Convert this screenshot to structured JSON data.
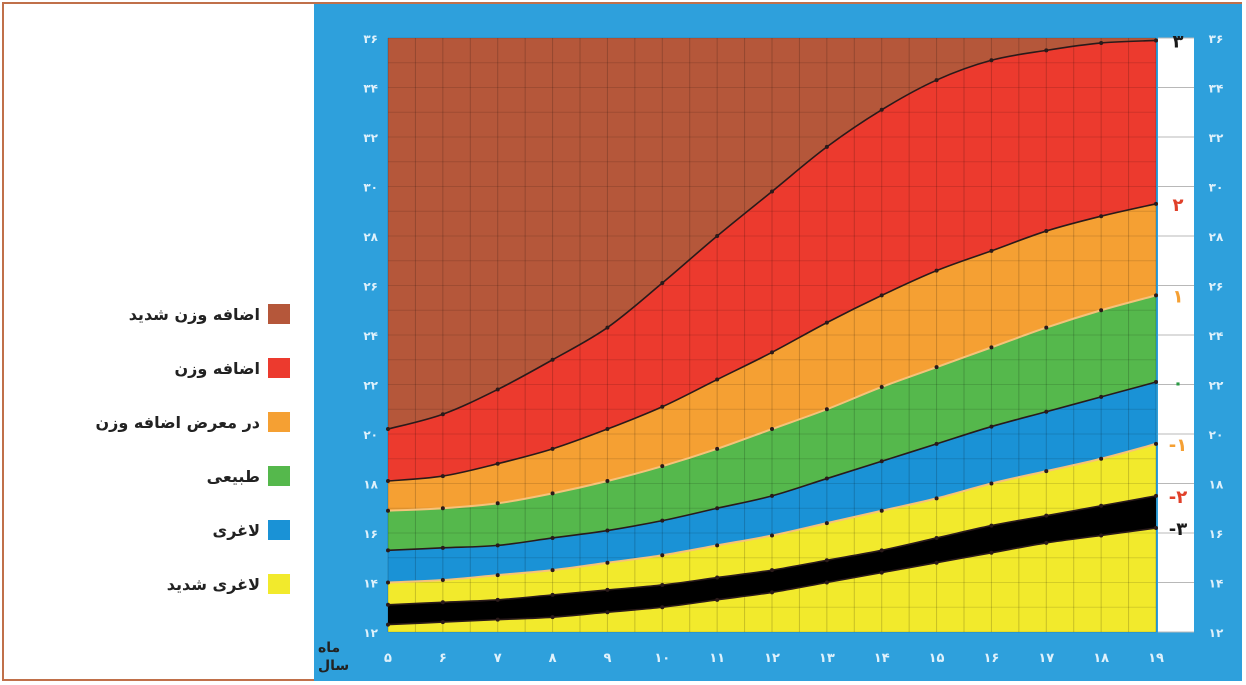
{
  "legend": [
    {
      "label": "اضافه وزن شدید",
      "color": "#b5573a"
    },
    {
      "label": "اضافه وزن",
      "color": "#ec3a2e"
    },
    {
      "label": "در معرض اضافه وزن",
      "color": "#f5a033"
    },
    {
      "label": "طبیعی",
      "color": "#55b84c"
    },
    {
      "label": "لاغری",
      "color": "#1a92d6"
    },
    {
      "label": "لاغری شدید",
      "color": "#f2ea2c"
    }
  ],
  "units": {
    "month": "ماه",
    "year": "سال"
  },
  "chart_data": {
    "type": "area",
    "x": [
      5,
      6,
      7,
      8,
      9,
      10,
      11,
      12,
      13,
      14,
      15,
      16,
      17,
      18,
      19
    ],
    "x_tick_labels": [
      "۵",
      "۶",
      "۷",
      "۸",
      "۹",
      "۱۰",
      "۱۱",
      "۱۲",
      "۱۳",
      "۱۴",
      "۱۵",
      "۱۶",
      "۱۷",
      "۱۸",
      "۱۹"
    ],
    "ylim": [
      12,
      36
    ],
    "y_ticks": [
      12,
      14,
      16,
      18,
      20,
      22,
      24,
      26,
      28,
      30,
      32,
      34,
      36
    ],
    "y_tick_labels": [
      "۱۲",
      "۱۴",
      "۱۶",
      "۱۸",
      "۲۰",
      "۲۲",
      "۲۴",
      "۲۶",
      "۲۸",
      "۳۰",
      "۳۲",
      "۳۴",
      "۳۶"
    ],
    "series": [
      {
        "name": "3",
        "label": "۳",
        "label_color": "#1a1a1a",
        "values": [
          20.2,
          20.8,
          21.8,
          23.0,
          24.3,
          26.1,
          28.0,
          29.8,
          31.6,
          33.1,
          34.3,
          35.1,
          35.5,
          35.8,
          35.9
        ]
      },
      {
        "name": "2",
        "label": "۲",
        "label_color": "#e0402a",
        "values": [
          18.1,
          18.3,
          18.8,
          19.4,
          20.2,
          21.1,
          22.2,
          23.3,
          24.5,
          25.6,
          26.6,
          27.4,
          28.2,
          28.8,
          29.3
        ]
      },
      {
        "name": "1",
        "label": "۱",
        "label_color": "#f5a033",
        "values": [
          16.9,
          17.0,
          17.2,
          17.6,
          18.1,
          18.7,
          19.4,
          20.2,
          21.0,
          21.9,
          22.7,
          23.5,
          24.3,
          25.0,
          25.6
        ]
      },
      {
        "name": "0",
        "label": "۰",
        "label_color": "#2a9a44",
        "values": [
          15.3,
          15.4,
          15.5,
          15.8,
          16.1,
          16.5,
          17.0,
          17.5,
          18.2,
          18.9,
          19.6,
          20.3,
          20.9,
          21.5,
          22.1
        ]
      },
      {
        "name": "-1",
        "label": "-۱",
        "label_color": "#f5a033",
        "values": [
          14.0,
          14.1,
          14.3,
          14.5,
          14.8,
          15.1,
          15.5,
          15.9,
          16.4,
          16.9,
          17.4,
          18.0,
          18.5,
          19.0,
          19.6
        ]
      },
      {
        "name": "-2",
        "label": "-۲",
        "label_color": "#e0402a",
        "values": [
          13.1,
          13.2,
          13.3,
          13.5,
          13.7,
          13.9,
          14.2,
          14.5,
          14.9,
          15.3,
          15.8,
          16.3,
          16.7,
          17.1,
          17.5
        ]
      },
      {
        "name": "-3",
        "label": "-۳",
        "label_color": "#1a1a1a",
        "values": [
          12.3,
          12.4,
          12.5,
          12.6,
          12.8,
          13.0,
          13.3,
          13.6,
          14.0,
          14.4,
          14.8,
          15.2,
          15.6,
          15.9,
          16.2
        ]
      }
    ],
    "zones_colors": [
      "#b5573a",
      "#ec3a2e",
      "#f5a033",
      "#55b84c",
      "#1a92d6",
      "#f2ea2c"
    ],
    "background": "#2ea0dc",
    "grid": true
  }
}
